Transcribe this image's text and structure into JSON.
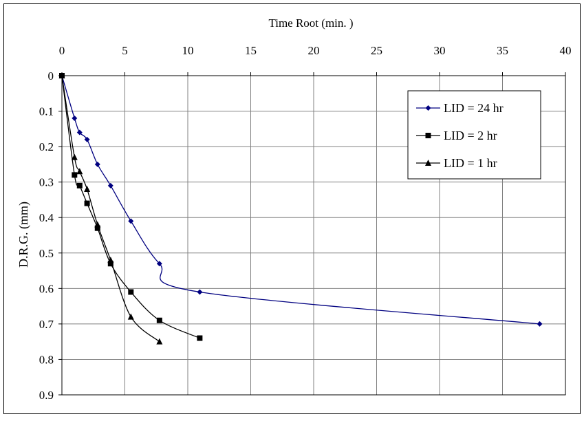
{
  "chart_data": {
    "type": "line",
    "title": "",
    "xlabel": "Time Root (min. )",
    "ylabel": "D.R.G. (mm)",
    "x_axis_position": "top",
    "y_axis_inverted": true,
    "xlim": [
      0,
      40
    ],
    "ylim": [
      0,
      0.9
    ],
    "x_ticks": [
      "0",
      "5",
      "10",
      "15",
      "20",
      "25",
      "30",
      "35",
      "40"
    ],
    "x_tick_values": [
      0,
      5,
      10,
      15,
      20,
      25,
      30,
      35,
      40
    ],
    "y_ticks": [
      "0",
      "0.1",
      "0.2",
      "0.3",
      "0.4",
      "0.5",
      "0.6",
      "0.7",
      "0.8",
      "0.9"
    ],
    "y_tick_values": [
      0,
      0.1,
      0.2,
      0.3,
      0.4,
      0.5,
      0.6,
      0.7,
      0.8,
      0.9
    ],
    "grid": true,
    "legend_position": "top-right",
    "series": [
      {
        "name": "LID = 24 hr",
        "color": "#000080",
        "marker": "diamond",
        "x": [
          0,
          1,
          1.41,
          2,
          2.83,
          3.87,
          5.48,
          7.75,
          10.95,
          37.95
        ],
        "y": [
          0,
          0.12,
          0.16,
          0.18,
          0.25,
          0.31,
          0.41,
          0.53,
          0.61,
          0.7
        ]
      },
      {
        "name": "LID = 2 hr",
        "color": "#000000",
        "marker": "square",
        "x": [
          0,
          1,
          1.41,
          2,
          2.83,
          3.87,
          5.48,
          7.75,
          10.95
        ],
        "y": [
          0,
          0.28,
          0.31,
          0.36,
          0.43,
          0.53,
          0.61,
          0.69,
          0.74
        ]
      },
      {
        "name": "LID = 1 hr",
        "color": "#000000",
        "marker": "triangle",
        "x": [
          0,
          1,
          1.41,
          2,
          2.83,
          3.87,
          5.48,
          7.75
        ],
        "y": [
          0,
          0.23,
          0.27,
          0.32,
          0.42,
          0.52,
          0.68,
          0.75
        ]
      }
    ]
  }
}
